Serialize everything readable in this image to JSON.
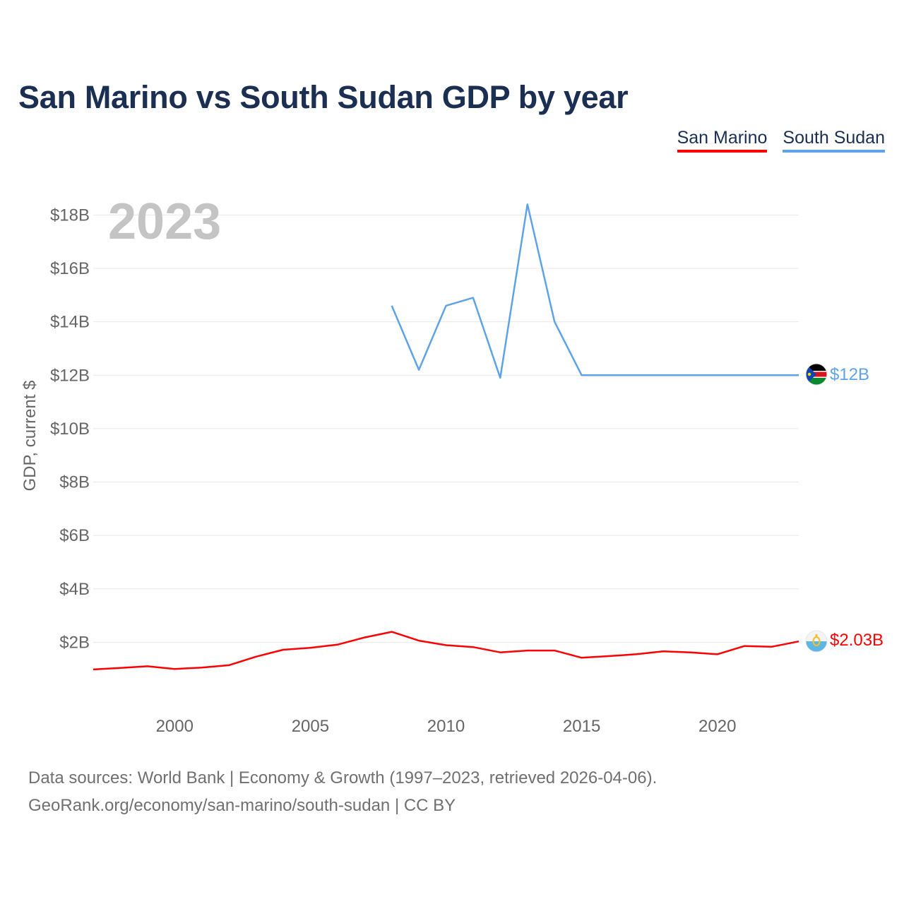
{
  "chart_data": {
    "type": "line",
    "title": "San Marino vs South Sudan GDP by year",
    "ylabel": "GDP, current $",
    "xlabel": "",
    "year_label": "2023",
    "xlim": [
      1997,
      2023
    ],
    "ylim": [
      0,
      18.6
    ],
    "x_ticks": [
      2000,
      2005,
      2010,
      2015,
      2020
    ],
    "x_tick_labels": [
      "2000",
      "2005",
      "2010",
      "2015",
      "2020"
    ],
    "y_ticks": [
      2,
      4,
      6,
      8,
      10,
      12,
      14,
      16,
      18
    ],
    "y_tick_labels": [
      "$2B",
      "$4B",
      "$6B",
      "$8B",
      "$10B",
      "$12B",
      "$14B",
      "$16B",
      "$18B"
    ],
    "legend_position": "top-right",
    "series": [
      {
        "name": "San Marino",
        "color": "#ff0000",
        "end_label": "$2.03B",
        "x": [
          1997,
          1998,
          1999,
          2000,
          2001,
          2002,
          2003,
          2004,
          2005,
          2006,
          2007,
          2008,
          2009,
          2010,
          2011,
          2012,
          2013,
          2014,
          2015,
          2016,
          2017,
          2018,
          2019,
          2020,
          2021,
          2022,
          2023
        ],
        "values": [
          0.98,
          1.04,
          1.1,
          1.0,
          1.05,
          1.14,
          1.46,
          1.72,
          1.79,
          1.91,
          2.18,
          2.39,
          2.06,
          1.89,
          1.82,
          1.62,
          1.69,
          1.69,
          1.42,
          1.48,
          1.55,
          1.66,
          1.62,
          1.55,
          1.86,
          1.83,
          2.03
        ]
      },
      {
        "name": "South Sudan",
        "color": "#5ea3e8",
        "end_label": "$12B",
        "x": [
          2008,
          2009,
          2010,
          2011,
          2012,
          2013,
          2014,
          2015,
          2016,
          2017,
          2018,
          2019,
          2020,
          2021,
          2022,
          2023
        ],
        "values": [
          14.6,
          12.2,
          14.6,
          14.9,
          11.9,
          18.4,
          14.0,
          12.0,
          12.0,
          12.0,
          12.0,
          12.0,
          12.0,
          12.0,
          12.0,
          12.0
        ]
      }
    ]
  },
  "footer": {
    "line1": "Data sources: World Bank | Economy & Growth (1997–2023, retrieved 2026-04-06).",
    "line2": "GeoRank.org/economy/san-marino/south-sudan | CC BY"
  }
}
